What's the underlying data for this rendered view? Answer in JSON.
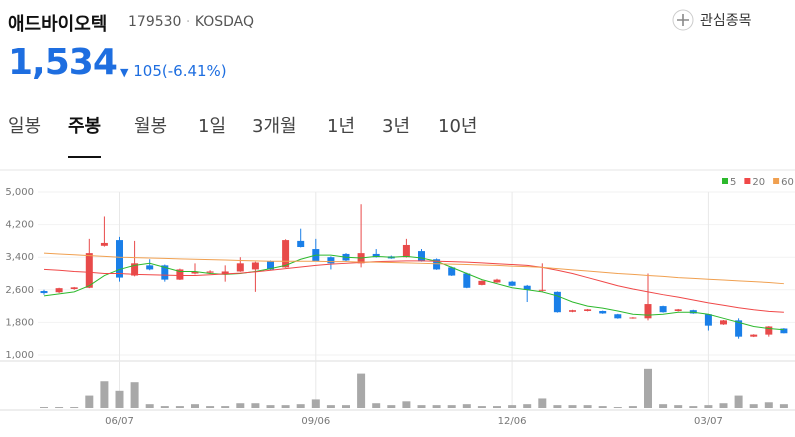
{
  "header": {
    "name": "애드바이오텍",
    "code": "179530",
    "market": "KOSDAQ",
    "watch": "관심종목",
    "price": "1,534",
    "change": "105(-6.41%)"
  },
  "tabs": [
    "일봉",
    "주봉",
    "월봉",
    "1일",
    "3개월",
    "1년",
    "3년",
    "10년"
  ],
  "selected_tab": 1,
  "chart_data": {
    "type": "candlestick",
    "up_color": "#e84a4a",
    "down_color": "#1a7fe8",
    "volume_color": "#a8a8a8",
    "categories": [
      null,
      null,
      null,
      null,
      null,
      "06/07",
      null,
      null,
      null,
      null,
      null,
      null,
      null,
      null,
      null,
      null,
      null,
      null,
      "09/06",
      null,
      null,
      null,
      null,
      null,
      null,
      null,
      null,
      null,
      null,
      null,
      null,
      "12/06",
      null,
      null,
      null,
      null,
      null,
      null,
      null,
      null,
      null,
      null,
      null,
      null,
      "03/07",
      null,
      null,
      null,
      null,
      null
    ],
    "open": [
      2570,
      2540,
      2620,
      2650,
      3680,
      3820,
      2950,
      3200,
      3200,
      2850,
      3000,
      3020,
      3000,
      3050,
      3100,
      3300,
      3150,
      3800,
      3600,
      3400,
      3480,
      3250,
      3480,
      3420,
      3400,
      3550,
      3350,
      3150,
      3000,
      2720,
      2780,
      2800,
      2700,
      2580,
      2550,
      2060,
      2080,
      2080,
      2000,
      1900,
      1900,
      2200,
      2080,
      2100,
      2000,
      1750,
      1850,
      1450,
      1500,
      1650
    ],
    "high": [
      2600,
      2650,
      2670,
      3850,
      4400,
      3900,
      3800,
      3350,
      3220,
      3120,
      3250,
      3080,
      3200,
      3400,
      3290,
      3320,
      3840,
      4100,
      3850,
      3420,
      3500,
      4700,
      3600,
      3440,
      3850,
      3600,
      3370,
      3170,
      3020,
      2830,
      2870,
      2820,
      2720,
      3250,
      2560,
      2110,
      2130,
      2090,
      2010,
      1930,
      3000,
      2210,
      2130,
      2110,
      2010,
      1860,
      1900,
      1510,
      1710,
      1660
    ],
    "low": [
      2480,
      2520,
      2600,
      2640,
      3660,
      2800,
      2930,
      3080,
      2800,
      2840,
      2980,
      3000,
      2800,
      3040,
      2550,
      3090,
      3140,
      3640,
      3300,
      3100,
      3300,
      3150,
      3390,
      3360,
      3390,
      3290,
      3090,
      2940,
      2640,
      2710,
      2770,
      2690,
      2300,
      2560,
      2040,
      2050,
      2070,
      2010,
      1890,
      1890,
      1850,
      2040,
      2070,
      2010,
      1600,
      1740,
      1400,
      1440,
      1450,
      1530
    ],
    "close": [
      2520,
      2640,
      2660,
      3500,
      3750,
      2900,
      3250,
      3100,
      2850,
      3100,
      3050,
      3050,
      3050,
      3250,
      3270,
      3100,
      3820,
      3650,
      3300,
      3250,
      3320,
      3500,
      3400,
      3370,
      3700,
      3300,
      3100,
      2950,
      2650,
      2820,
      2850,
      2700,
      2600,
      2600,
      2050,
      2100,
      2120,
      2020,
      1900,
      1920,
      2250,
      2050,
      2120,
      2020,
      1720,
      1850,
      1450,
      1500,
      1700,
      1534
    ],
    "volume": [
      1,
      1,
      1,
      13,
      28,
      18,
      27,
      4,
      2,
      2,
      4,
      2,
      2,
      5,
      5,
      3,
      3,
      4,
      9,
      3,
      3,
      36,
      5,
      3,
      7,
      3,
      3,
      3,
      4,
      2,
      2,
      3,
      4,
      10,
      3,
      3,
      3,
      2,
      1,
      2,
      41,
      4,
      3,
      2,
      3,
      5,
      13,
      4,
      6,
      4
    ],
    "volume_lim": [
      0,
      45
    ],
    "ma": [
      {
        "name": "5",
        "color": "#2db92d",
        "values": [
          2450,
          2500,
          2550,
          2700,
          2950,
          3100,
          3200,
          3250,
          3150,
          3050,
          3050,
          3000,
          2980,
          3000,
          3050,
          3120,
          3200,
          3350,
          3450,
          3450,
          3400,
          3380,
          3420,
          3400,
          3420,
          3380,
          3300,
          3150,
          3000,
          2850,
          2750,
          2650,
          2600,
          2550,
          2450,
          2300,
          2200,
          2150,
          2080,
          2000,
          1980,
          2000,
          2050,
          2050,
          2000,
          1900,
          1800,
          1700,
          1650,
          1620
        ]
      },
      {
        "name": "20",
        "color": "#f04848",
        "values": [
          3100,
          3080,
          3050,
          3030,
          3000,
          3000,
          2980,
          2970,
          2960,
          2950,
          2950,
          2970,
          2990,
          3010,
          3040,
          3080,
          3120,
          3160,
          3200,
          3230,
          3250,
          3270,
          3290,
          3300,
          3310,
          3310,
          3300,
          3290,
          3280,
          3260,
          3240,
          3220,
          3200,
          3150,
          3080,
          3000,
          2900,
          2800,
          2700,
          2620,
          2550,
          2480,
          2420,
          2350,
          2280,
          2220,
          2160,
          2110,
          2070,
          2050
        ]
      },
      {
        "name": "60",
        "color": "#f0a050",
        "values": [
          3500,
          3480,
          3460,
          3440,
          3420,
          3400,
          3390,
          3380,
          3370,
          3360,
          3350,
          3340,
          3330,
          3320,
          3310,
          3300,
          3300,
          3300,
          3300,
          3290,
          3290,
          3280,
          3280,
          3270,
          3260,
          3250,
          3240,
          3230,
          3220,
          3210,
          3200,
          3180,
          3170,
          3150,
          3120,
          3090,
          3060,
          3030,
          3000,
          2980,
          2950,
          2930,
          2900,
          2880,
          2860,
          2840,
          2820,
          2800,
          2780,
          2750
        ]
      }
    ],
    "ylim": [
      1000,
      5000
    ],
    "yticks": [
      {
        "value": 1000,
        "label": "1,000"
      },
      {
        "value": 1800,
        "label": "1,800"
      },
      {
        "value": 2600,
        "label": "2,600"
      },
      {
        "value": 3400,
        "label": "3,400"
      },
      {
        "value": 4200,
        "label": "4,200"
      },
      {
        "value": 5000,
        "label": "5,000"
      }
    ],
    "grid": true
  }
}
